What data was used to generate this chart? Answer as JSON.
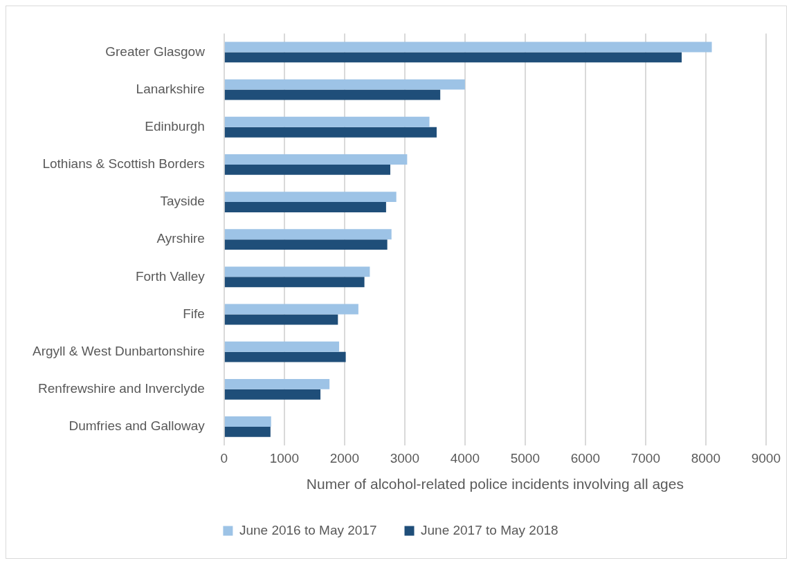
{
  "chart_data": {
    "type": "bar",
    "orientation": "horizontal",
    "xlabel": "Numer of alcohol-related police incidents involving all ages",
    "categories": [
      "Greater Glasgow",
      "Lanarkshire",
      "Edinburgh",
      "Lothians & Scottish Borders",
      "Tayside",
      "Ayrshire",
      "Forth Valley",
      "Fife",
      "Argyll & West Dunbartonshire",
      "Renfrewshire and Inverclyde",
      "Dumfries and Galloway"
    ],
    "series": [
      {
        "name": "June 2016 to May 2017",
        "color": "#9dc3e6",
        "values": [
          8100,
          4000,
          3410,
          3040,
          2860,
          2780,
          2420,
          2230,
          1910,
          1750,
          780
        ]
      },
      {
        "name": "June 2017 to May 2018",
        "color": "#1f4e79",
        "values": [
          7600,
          3590,
          3530,
          2760,
          2690,
          2710,
          2330,
          1890,
          2020,
          1600,
          770
        ]
      }
    ],
    "xlim": [
      0,
      9000
    ],
    "xticks": [
      0,
      1000,
      2000,
      3000,
      4000,
      5000,
      6000,
      7000,
      8000,
      9000
    ],
    "grid": "x",
    "legend": "bottom"
  }
}
